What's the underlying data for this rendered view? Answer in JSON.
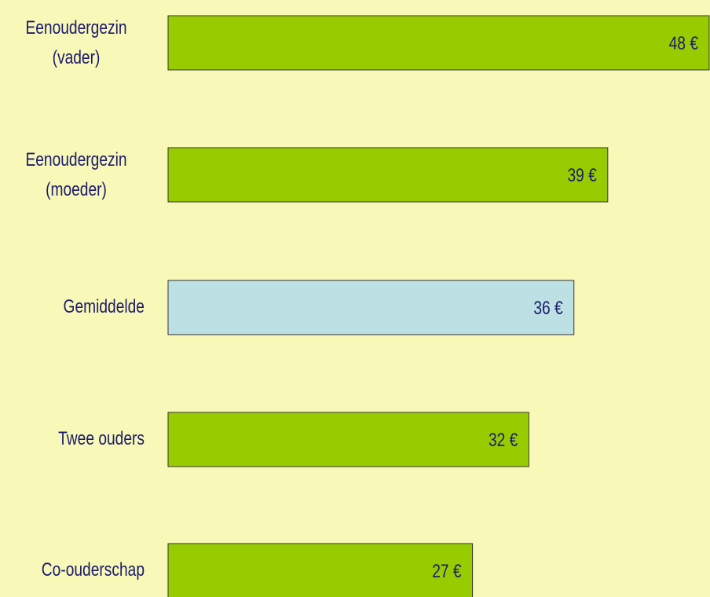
{
  "chart_data": {
    "type": "hbar",
    "categories": [
      "Eenoudergezin (vader)",
      "Eenoudergezin (moeder)",
      "Gemiddelde",
      "Twee ouders",
      "Co-ouderschap"
    ],
    "values": [
      48,
      39,
      36,
      32,
      27
    ],
    "value_labels": [
      "48 €",
      "39 €",
      "36 €",
      "32 €",
      "27 €"
    ],
    "colors": [
      "#99cc00",
      "#99cc00",
      "#bce0e4",
      "#99cc00",
      "#99cc00"
    ]
  }
}
